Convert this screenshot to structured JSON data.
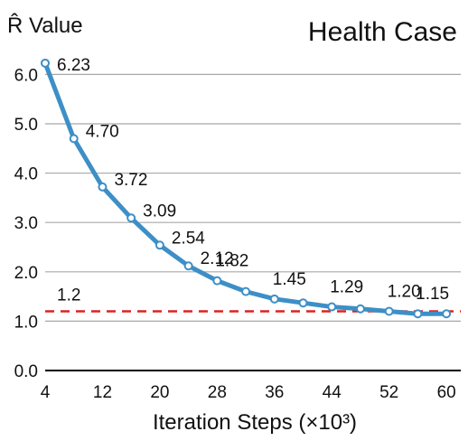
{
  "chart_data": {
    "type": "line",
    "title": "Health Case",
    "ylabel": "R̂ Value",
    "xlabel": "Iteration Steps (×10³)",
    "xlim": [
      4,
      62
    ],
    "ylim": [
      0,
      6.3
    ],
    "x_ticks": [
      4,
      12,
      20,
      28,
      36,
      44,
      52,
      60
    ],
    "y_ticks": [
      0.0,
      1.0,
      2.0,
      3.0,
      4.0,
      5.0,
      6.0
    ],
    "y_tick_labels": [
      "0.0",
      "1.0",
      "2.0",
      "3.0",
      "4.0",
      "5.0",
      "6.0"
    ],
    "grid": "horizontal",
    "series": [
      {
        "x": [
          4,
          8,
          12,
          16,
          20,
          24,
          28,
          32,
          36,
          40,
          44,
          48,
          52,
          56,
          60
        ],
        "values": [
          6.23,
          4.7,
          3.72,
          3.09,
          2.54,
          2.12,
          1.82,
          1.6,
          1.45,
          1.37,
          1.29,
          1.25,
          1.2,
          1.15,
          1.15
        ],
        "color": "#3d8fc6"
      }
    ],
    "data_labels": [
      {
        "x": 4,
        "y": 6.23,
        "text": "6.23"
      },
      {
        "x": 8,
        "y": 4.7,
        "text": "4.70"
      },
      {
        "x": 12,
        "y": 3.72,
        "text": "3.72"
      },
      {
        "x": 16,
        "y": 3.09,
        "text": "3.09"
      },
      {
        "x": 20,
        "y": 2.54,
        "text": "2.54"
      },
      {
        "x": 24,
        "y": 2.12,
        "text": "2.12"
      },
      {
        "x": 28,
        "y": 1.82,
        "text": "1.82"
      },
      {
        "x": 36,
        "y": 1.45,
        "text": "1.45"
      },
      {
        "x": 44,
        "y": 1.29,
        "text": "1.29"
      },
      {
        "x": 52,
        "y": 1.2,
        "text": "1.20"
      },
      {
        "x": 60,
        "y": 1.15,
        "text": "1.15"
      }
    ],
    "reference_line": {
      "y": 1.2,
      "label": "1.2",
      "color": "#dd2222",
      "style": "dashed"
    }
  }
}
